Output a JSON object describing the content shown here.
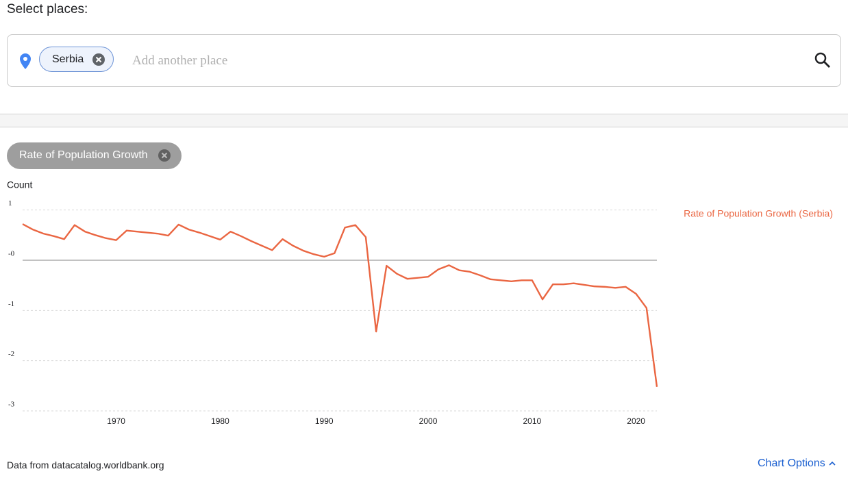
{
  "header": {
    "title": "Select places:",
    "chip": "Serbia",
    "placeholder": "Add another place"
  },
  "variable_chip": "Rate of Population Growth",
  "chart_data": {
    "type": "line",
    "y_label": "Count",
    "x": [
      1961,
      1962,
      1963,
      1964,
      1965,
      1966,
      1967,
      1968,
      1969,
      1970,
      1971,
      1972,
      1973,
      1974,
      1975,
      1976,
      1977,
      1978,
      1979,
      1980,
      1981,
      1982,
      1983,
      1984,
      1985,
      1986,
      1987,
      1988,
      1989,
      1990,
      1991,
      1992,
      1993,
      1994,
      1995,
      1996,
      1997,
      1998,
      1999,
      2000,
      2001,
      2002,
      2003,
      2004,
      2005,
      2006,
      2007,
      2008,
      2009,
      2010,
      2011,
      2012,
      2013,
      2014,
      2015,
      2016,
      2017,
      2018,
      2019,
      2020,
      2021,
      2022
    ],
    "series": [
      {
        "name": "Rate of Population Growth (Serbia)",
        "color": "#ea6642",
        "values": [
          0.72,
          0.61,
          0.53,
          0.48,
          0.42,
          0.7,
          0.57,
          0.5,
          0.44,
          0.4,
          0.59,
          0.57,
          0.55,
          0.53,
          0.49,
          0.71,
          0.61,
          0.55,
          0.48,
          0.41,
          0.57,
          0.48,
          0.38,
          0.29,
          0.2,
          0.42,
          0.29,
          0.19,
          0.12,
          0.07,
          0.14,
          0.65,
          0.7,
          0.46,
          -1.42,
          -0.11,
          -0.27,
          -0.37,
          -0.35,
          -0.33,
          -0.18,
          -0.1,
          -0.2,
          -0.23,
          -0.3,
          -0.38,
          -0.4,
          -0.42,
          -0.4,
          -0.4,
          -0.78,
          -0.48,
          -0.48,
          -0.46,
          -0.49,
          -0.52,
          -0.53,
          -0.55,
          -0.53,
          -0.67,
          -0.95,
          -2.52
        ]
      }
    ],
    "xlim": [
      1961,
      2022
    ],
    "xticks": [
      1970,
      1980,
      1990,
      2000,
      2010,
      2020
    ],
    "ylim": [
      -3,
      1.2
    ],
    "yticks": [
      1,
      {
        "value": 0,
        "label": "-0"
      },
      -1,
      -2,
      -3
    ],
    "grid": true
  },
  "footer": {
    "source": "Data from datacatalog.worldbank.org",
    "options": "Chart Options"
  }
}
